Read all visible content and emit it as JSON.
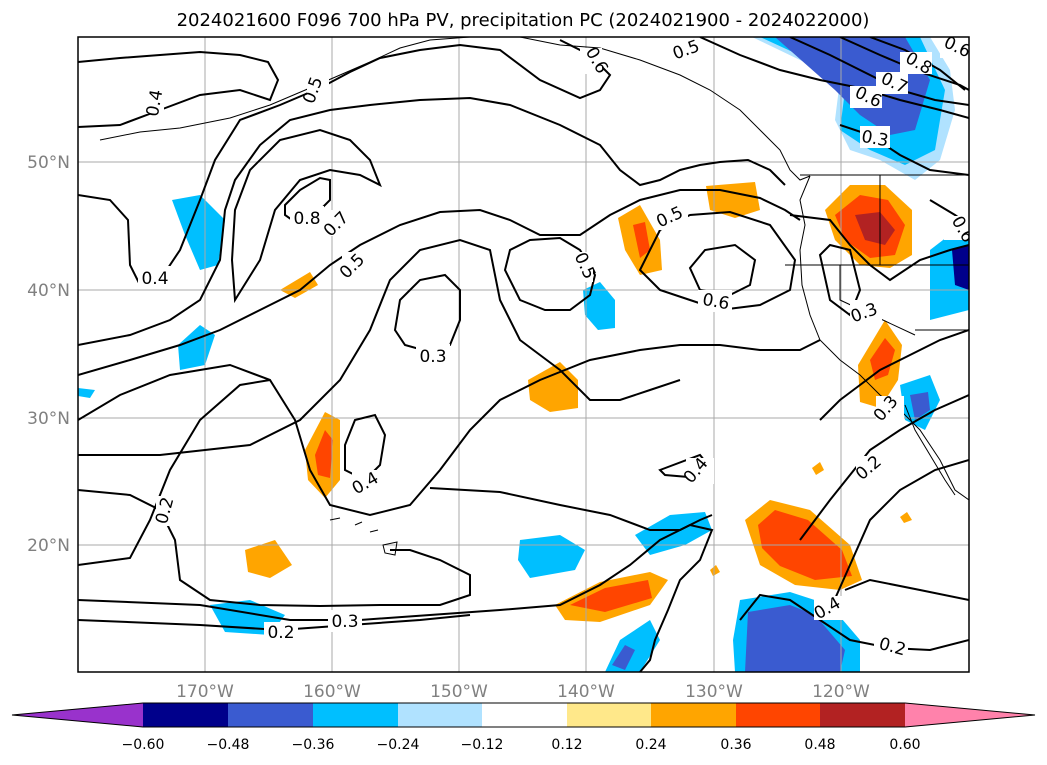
{
  "chart_data": {
    "type": "contour map",
    "title": "2024021600 F096 700 hPa PV, precipitation PC (2024021900 - 2024022000)",
    "x_ticks": [
      "170°W",
      "160°W",
      "150°W",
      "140°W",
      "130°W",
      "120°W"
    ],
    "y_ticks": [
      "20°N",
      "30°N",
      "40°N",
      "50°N"
    ],
    "colorbar": {
      "ticks": [
        "−0.60",
        "−0.48",
        "−0.36",
        "−0.24",
        "−0.12",
        "0.12",
        "0.24",
        "0.36",
        "0.48",
        "0.60"
      ],
      "bins": [
        {
          "range": "< -0.60",
          "color": "#9932cc"
        },
        {
          "range": "-0.60 to -0.48",
          "color": "#00008b"
        },
        {
          "range": "-0.48 to -0.36",
          "color": "#3a5bd0"
        },
        {
          "range": "-0.36 to -0.24",
          "color": "#00bfff"
        },
        {
          "range": "-0.24 to -0.12",
          "color": "#b0e2ff"
        },
        {
          "range": "-0.12 to 0.12",
          "color": "#ffffff"
        },
        {
          "range": "0.12 to 0.24",
          "color": "#ffe88a"
        },
        {
          "range": "0.24 to 0.36",
          "color": "#ffa500"
        },
        {
          "range": "0.36 to 0.48",
          "color": "#ff4500"
        },
        {
          "range": "0.48 to 0.60",
          "color": "#b22222"
        },
        {
          "range": "> 0.60",
          "color": "#ff82ab"
        }
      ]
    },
    "contour_labels": [
      "0.4",
      "0.5",
      "0.6",
      "0.5",
      "0.6",
      "0.7",
      "0.8",
      "0.4",
      "0.8",
      "0.7",
      "0.5",
      "0.5",
      "0.5",
      "0.6",
      "0.3",
      "0.3",
      "0.6",
      "0.3",
      "0.4",
      "0.4",
      "0.2",
      "0.2",
      "0.3",
      "0.4",
      "0.2",
      "0.2",
      "0.3",
      "0.6"
    ],
    "grid": true
  }
}
